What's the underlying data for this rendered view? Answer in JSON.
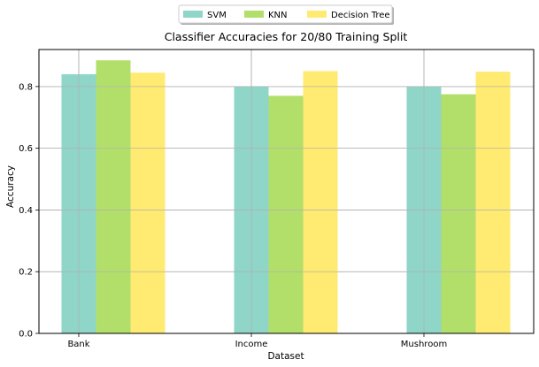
{
  "chart_data": {
    "type": "bar",
    "title": "Classifier Accuracies for 20/80 Training Split",
    "xlabel": "Dataset",
    "ylabel": "Accuracy",
    "categories": [
      "Bank",
      "Income",
      "Mushroom"
    ],
    "series": [
      {
        "name": "SVM",
        "color": "#8fd5c8",
        "values": [
          0.84,
          0.8,
          0.8
        ]
      },
      {
        "name": "KNN",
        "color": "#b2df6a",
        "values": [
          0.885,
          0.77,
          0.775
        ]
      },
      {
        "name": "Decision Tree",
        "color": "#ffea72",
        "values": [
          0.845,
          0.85,
          0.848
        ]
      }
    ],
    "ylim": [
      0,
      0.92
    ],
    "yticks": [
      0.0,
      0.2,
      0.4,
      0.6,
      0.8
    ],
    "ytick_labels": [
      "0.0",
      "0.2",
      "0.4",
      "0.6",
      "0.8"
    ],
    "grid": true,
    "legend_placement": "top-center"
  }
}
